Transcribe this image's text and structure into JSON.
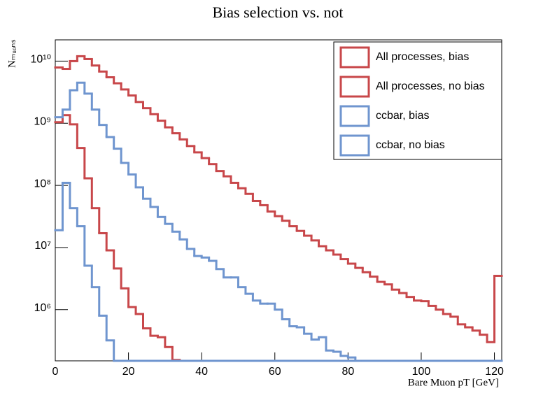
{
  "chart_data": {
    "type": "histogram",
    "title": "Bias selection vs. not",
    "x_label": "Bare Muon pT [GeV]",
    "y_label": "Nₘᵤₒₙₛ",
    "log_y": true,
    "legend": "top-right",
    "bins": [
      0,
      2,
      4,
      6,
      8,
      10,
      12,
      14,
      16,
      18,
      20,
      22,
      24,
      26,
      28,
      30,
      32,
      34,
      36,
      38,
      40,
      42,
      44,
      46,
      48,
      50,
      52,
      54,
      56,
      58,
      60,
      62,
      64,
      66,
      68,
      70,
      72,
      74,
      76,
      78,
      80,
      82,
      84,
      86,
      88,
      90,
      92,
      94,
      96,
      98,
      100,
      102,
      104,
      106,
      108,
      110,
      112,
      114,
      116,
      118,
      120,
      122
    ],
    "xlim": [
      0,
      122
    ],
    "xticks": [
      0,
      20,
      40,
      60,
      80,
      100,
      120
    ],
    "ylim": [
      150000,
      22000000000
    ],
    "yticks": [
      {
        "value": 1000000,
        "label": "10⁶"
      },
      {
        "value": 10000000,
        "label": "10⁷"
      },
      {
        "value": 100000000,
        "label": "10⁸"
      },
      {
        "value": 1000000000,
        "label": "10⁹"
      },
      {
        "value": 10000000000,
        "label": "10¹⁰"
      }
    ],
    "series": [
      {
        "name": "All processes, bias",
        "color": "#c8474a",
        "values": [
          7900000000,
          7500000000,
          10000000000,
          12000000000,
          10800000000,
          8500000000,
          6800000000,
          5500000000,
          4400000000,
          3500000000,
          2800000000,
          2200000000,
          1750000000,
          1400000000,
          1100000000,
          860000000,
          690000000,
          550000000,
          430000000,
          340000000,
          275000000,
          220000000,
          170000000,
          140000000,
          110000000,
          90000000,
          73000000,
          56000000,
          48000000,
          38000000,
          32000000,
          27000000,
          22000000,
          18500000,
          15500000,
          13000000,
          10500000,
          9000000,
          7700000,
          6500000,
          5500000,
          4700000,
          4000000,
          3400000,
          2800000,
          2550000,
          2100000,
          1850000,
          1600000,
          1400000,
          1370000,
          1150000,
          1000000,
          850000,
          770000,
          580000,
          520000,
          460000,
          395000,
          300000,
          3500000
        ]
      },
      {
        "name": "All processes, no bias",
        "color": "#c8474a",
        "values": [
          1040000000,
          1350000000,
          960000000,
          400000000,
          130000000,
          43000000,
          17000000,
          9000000,
          4600000,
          2200000,
          1100000,
          850000,
          500000,
          380000,
          360000,
          250000,
          155000,
          0,
          0,
          0,
          0,
          0,
          0,
          0,
          0,
          0,
          0,
          0,
          0,
          0,
          0,
          0,
          0,
          0,
          0,
          0,
          0,
          0,
          0,
          0,
          0,
          0,
          0,
          0,
          0,
          0,
          0,
          0,
          0,
          0,
          0,
          0,
          0,
          0,
          0,
          0,
          0,
          0,
          0,
          0,
          0
        ]
      },
      {
        "name": "ccbar, bias",
        "color": "#6f95cf",
        "values": [
          1250000000,
          1660000000,
          3400000000,
          4500000000,
          3000000000,
          1660000000,
          940000000,
          600000000,
          390000000,
          230000000,
          150000000,
          93000000,
          61000000,
          45000000,
          31000000,
          24000000,
          18000000,
          13500000,
          9500000,
          7300000,
          6900000,
          6100000,
          4500000,
          3300000,
          3300000,
          2300000,
          1800000,
          1400000,
          1250000,
          1250000,
          1000000,
          700000,
          540000,
          520000,
          410000,
          330000,
          360000,
          220000,
          210000,
          180000,
          170000,
          0,
          0,
          0,
          0,
          0,
          0,
          0,
          0,
          0,
          0,
          0,
          0,
          0,
          0,
          0,
          0,
          0,
          0,
          0,
          0
        ]
      },
      {
        "name": "ccbar, no bias",
        "color": "#6f95cf",
        "values": [
          19000000,
          110000000,
          43000000,
          22000000,
          5100000,
          2300000,
          800000,
          320000,
          0,
          0,
          0,
          0,
          0,
          0,
          0,
          0,
          0,
          0,
          0,
          0,
          0,
          0,
          0,
          0,
          0,
          0,
          0,
          0,
          0,
          0,
          0,
          0,
          0,
          0,
          0,
          0,
          0,
          0,
          0,
          0,
          0,
          0,
          0,
          0,
          0,
          0,
          0,
          0,
          0,
          0,
          0,
          0,
          0,
          0,
          0,
          0,
          0,
          0,
          0,
          0,
          0
        ]
      }
    ]
  }
}
